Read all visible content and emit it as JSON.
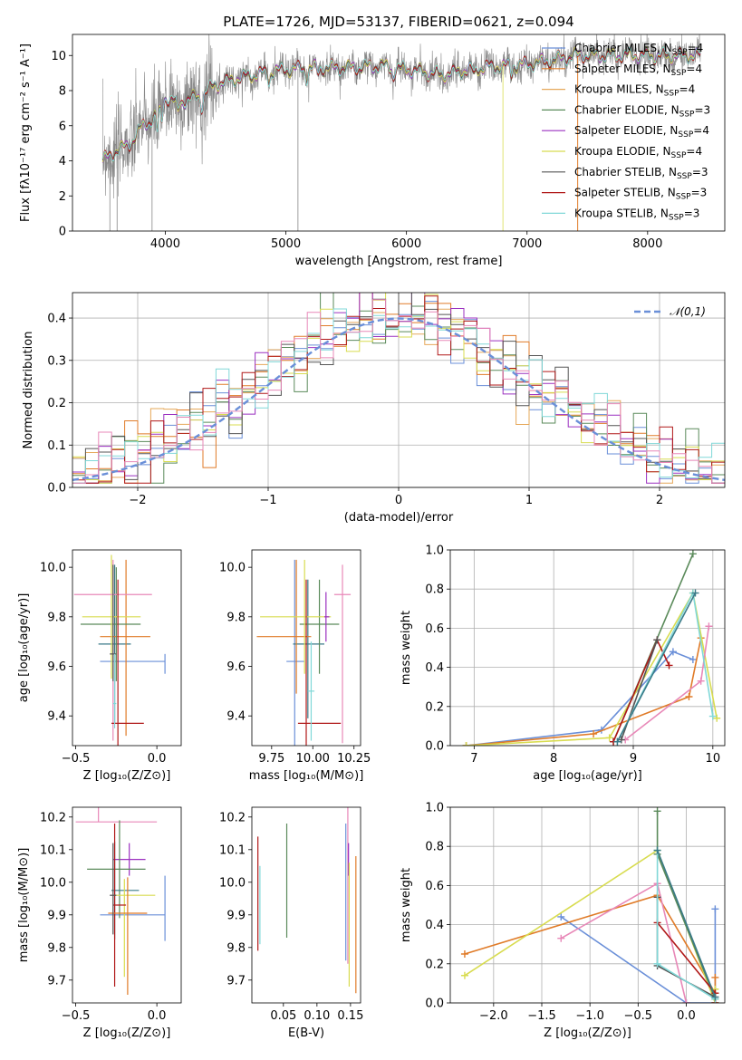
{
  "title": "PLATE=1726, MJD=53137, FIBERID=0621, z=0.094",
  "colors": {
    "c0": "#6a8fd8",
    "c1": "#e07b28",
    "c2": "#e6a85a",
    "c3": "#5a8a5a",
    "c4": "#9b30c0",
    "c5": "#d8dc50",
    "c6": "#555555",
    "c7": "#b01818",
    "c8": "#80d8d8",
    "c9": "#e888b8",
    "c10": "#3a7a88",
    "data": "#888888"
  },
  "chart_data": [
    {
      "type": "line",
      "panel": "spectrum",
      "xlabel": "wavelength [Angstrom, rest frame]",
      "ylabel": "Flux [fλ10⁻¹⁷ erg cm⁻² s⁻¹ A⁻¹]",
      "xlim": [
        3230,
        8640
      ],
      "ylim": [
        0,
        11.2
      ],
      "xticks": [
        4000,
        5000,
        6000,
        7000,
        8000
      ],
      "yticks": [
        0,
        2,
        4,
        6,
        8,
        10
      ],
      "series": [
        {
          "name": "Chabrier MILES, N_SSP=4",
          "color": "c0"
        },
        {
          "name": "Salpeter MILES, N_SSP=4",
          "color": "c1"
        },
        {
          "name": "Kroupa MILES, N_SSP=4",
          "color": "c2"
        },
        {
          "name": "Chabrier ELODIE, N_SSP=3",
          "color": "c3"
        },
        {
          "name": "Salpeter ELODIE, N_SSP=4",
          "color": "c4"
        },
        {
          "name": "Kroupa ELODIE, N_SSP=4",
          "color": "c5"
        },
        {
          "name": "Chabrier STELIB, N_SSP=3",
          "color": "c6"
        },
        {
          "name": "Salpeter STELIB, N_SSP=3",
          "color": "c7"
        },
        {
          "name": "Kroupa STELIB, N_SSP=3",
          "color": "c8"
        }
      ],
      "legend_label_parts": [
        [
          "Chabrier MILES, N",
          "SSP",
          "=4"
        ],
        [
          "Salpeter MILES, N",
          "SSP",
          "=4"
        ],
        [
          "Kroupa MILES, N",
          "SSP",
          "=4"
        ],
        [
          "Chabrier ELODIE, N",
          "SSP",
          "=3"
        ],
        [
          "Salpeter ELODIE, N",
          "SSP",
          "=4"
        ],
        [
          "Kroupa ELODIE, N",
          "SSP",
          "=4"
        ],
        [
          "Chabrier STELIB, N",
          "SSP",
          "=3"
        ],
        [
          "Salpeter STELIB, N",
          "SSP",
          "=3"
        ],
        [
          "Kroupa STELIB, N",
          "SSP",
          "=3"
        ]
      ],
      "continuum_points": [
        [
          3480,
          4.0
        ],
        [
          3600,
          4.6
        ],
        [
          3700,
          4.9
        ],
        [
          3800,
          5.9
        ],
        [
          3900,
          6.4
        ],
        [
          4000,
          7.6
        ],
        [
          4100,
          7.3
        ],
        [
          4200,
          7.5
        ],
        [
          4300,
          7.7
        ],
        [
          4400,
          8.3
        ],
        [
          4600,
          8.7
        ],
        [
          4800,
          9.0
        ],
        [
          5000,
          9.2
        ],
        [
          5200,
          9.3
        ],
        [
          5500,
          9.3
        ],
        [
          5800,
          9.4
        ],
        [
          6000,
          9.2
        ],
        [
          6300,
          8.9
        ],
        [
          6600,
          9.3
        ],
        [
          6800,
          9.4
        ],
        [
          7000,
          9.5
        ],
        [
          7200,
          9.7
        ],
        [
          7400,
          10.0
        ]
      ],
      "legend": "right"
    },
    {
      "type": "histogram",
      "panel": "residuals",
      "xlabel": "(data-model)/error",
      "ylabel": "Normed distribution",
      "xlim": [
        -2.5,
        2.5
      ],
      "ylim": [
        0,
        0.46
      ],
      "xticks": [
        -2,
        -1,
        0,
        1,
        2
      ],
      "yticks": [
        0.0,
        0.1,
        0.2,
        0.3,
        0.4
      ],
      "curve_label": "𝒩(0,1)",
      "legend": "top-right",
      "grid": true
    },
    {
      "type": "errorbar",
      "panel": "age-vs-Z",
      "xlabel": "Z [log₁₀(Z/Z⊙)]",
      "ylabel": "age  [log₁₀(age/yr)]",
      "xlim": [
        -0.52,
        0.15
      ],
      "ylim": [
        9.28,
        10.07
      ],
      "xticks": [
        -0.5,
        0.0
      ],
      "yticks": [
        9.4,
        9.6,
        9.8,
        10.0
      ],
      "points": [
        {
          "x": 0.05,
          "y": 9.62,
          "xerr": [
            0.4,
            0.0
          ],
          "yerr": [
            0.05,
            0.03
          ],
          "color": "c0"
        },
        {
          "x": -0.26,
          "y": 9.69,
          "xerr": [
            0.1,
            0.1
          ],
          "yerr": [
            0.32,
            0.32
          ],
          "color": "c10"
        },
        {
          "x": -0.19,
          "y": 9.72,
          "xerr": [
            0.16,
            0.15
          ],
          "yerr": [
            0.4,
            0.31
          ],
          "color": "c1"
        },
        {
          "x": -0.25,
          "y": 9.77,
          "xerr": [
            0.22,
            0.15
          ],
          "yerr": [
            0.23,
            0.23
          ],
          "color": "c3"
        },
        {
          "x": -0.28,
          "y": 9.8,
          "xerr": [
            0.18,
            0.18
          ],
          "yerr": [
            0.25,
            0.25
          ],
          "color": "c5"
        },
        {
          "x": -0.27,
          "y": 9.89,
          "xerr": [
            0.24,
            0.24
          ],
          "yerr": [
            0.59,
            0.14
          ],
          "color": "c9"
        },
        {
          "x": -0.27,
          "y": 9.65,
          "xerr": [
            0.02,
            0.02
          ],
          "yerr": [
            0.11,
            0.36
          ],
          "color": "c6"
        },
        {
          "x": -0.24,
          "y": 9.37,
          "xerr": [
            0.04,
            0.16
          ],
          "yerr": [
            0.12,
            0.58
          ],
          "color": "c7"
        },
        {
          "x": -0.26,
          "y": 9.45,
          "xerr": [
            0.01,
            0.01
          ],
          "yerr": [
            0.1,
            0.2
          ],
          "color": "c8"
        }
      ]
    },
    {
      "type": "errorbar",
      "panel": "age-vs-mass",
      "xlabel": "mass [log₁₀(M/M⊙)]",
      "xlim": [
        9.63,
        10.29
      ],
      "ylim": [
        9.28,
        10.07
      ],
      "xticks": [
        9.75,
        10.0,
        10.25
      ],
      "yticks": [
        9.4,
        9.6,
        9.8,
        10.0
      ],
      "points": [
        {
          "x": 9.89,
          "y": 9.62,
          "xerr": [
            0.05,
            0.06
          ],
          "yerr": [
            0.62,
            0.41
          ],
          "color": "c0"
        },
        {
          "x": 9.97,
          "y": 9.69,
          "xerr": [
            0.09,
            0.1
          ],
          "yerr": [
            0.3,
            0.26
          ],
          "color": "c10"
        },
        {
          "x": 9.9,
          "y": 9.72,
          "xerr": [
            0.24,
            0.09
          ],
          "yerr": [
            0.23,
            0.31
          ],
          "color": "c1"
        },
        {
          "x": 10.04,
          "y": 9.77,
          "xerr": [
            0.12,
            0.12
          ],
          "yerr": [
            0.2,
            0.18
          ],
          "color": "c3"
        },
        {
          "x": 9.95,
          "y": 9.8,
          "xerr": [
            0.27,
            0.16
          ],
          "yerr": [
            0.23,
            0.23
          ],
          "color": "c5"
        },
        {
          "x": 10.18,
          "y": 9.89,
          "xerr": [
            0.05,
            0.05
          ],
          "yerr": [
            0.6,
            0.12
          ],
          "color": "c9"
        },
        {
          "x": 10.08,
          "y": 9.8,
          "xerr": [
            0.01,
            0.02
          ],
          "yerr": [
            0.1,
            0.1
          ],
          "color": "c4"
        },
        {
          "x": 9.96,
          "y": 9.37,
          "xerr": [
            0.05,
            0.21
          ],
          "yerr": [
            0.12,
            0.58
          ],
          "color": "c7"
        },
        {
          "x": 9.99,
          "y": 9.5,
          "xerr": [
            0.02,
            0.02
          ],
          "yerr": [
            0.2,
            0.2
          ],
          "color": "c8"
        }
      ]
    },
    {
      "type": "line",
      "panel": "mass-weight-vs-age",
      "xlabel": "age  [log₁₀(age/yr)]",
      "ylabel": "mass weight",
      "xlim": [
        6.7,
        10.15
      ],
      "ylim": [
        0,
        1.0
      ],
      "xticks": [
        7,
        8,
        9,
        10
      ],
      "yticks": [
        0.0,
        0.2,
        0.4,
        0.6,
        0.8,
        1.0
      ],
      "grid": true,
      "series": [
        {
          "color": "c0",
          "points": [
            [
              6.9,
              0.0
            ],
            [
              8.6,
              0.08
            ],
            [
              9.5,
              0.48
            ],
            [
              9.75,
              0.44
            ]
          ]
        },
        {
          "color": "c1",
          "points": [
            [
              6.9,
              0.0
            ],
            [
              8.5,
              0.06
            ],
            [
              9.7,
              0.25
            ],
            [
              9.85,
              0.55
            ]
          ]
        },
        {
          "color": "c5",
          "points": [
            [
              6.9,
              0.0
            ],
            [
              8.7,
              0.04
            ],
            [
              9.75,
              0.78
            ],
            [
              10.05,
              0.14
            ]
          ]
        },
        {
          "color": "c3",
          "points": [
            [
              8.75,
              0.02
            ],
            [
              9.75,
              0.98
            ]
          ]
        },
        {
          "color": "c9",
          "points": [
            [
              8.9,
              0.03
            ],
            [
              9.85,
              0.33
            ],
            [
              9.95,
              0.61
            ]
          ]
        },
        {
          "color": "c7",
          "points": [
            [
              8.75,
              0.02
            ],
            [
              9.3,
              0.54
            ],
            [
              9.45,
              0.41
            ]
          ]
        },
        {
          "color": "c6",
          "points": [
            [
              8.85,
              0.03
            ],
            [
              9.3,
              0.54
            ]
          ]
        },
        {
          "color": "c8",
          "points": [
            [
              8.8,
              0.02
            ],
            [
              9.75,
              0.78
            ],
            [
              10.0,
              0.15
            ]
          ]
        },
        {
          "color": "c10",
          "points": [
            [
              8.8,
              0.02
            ],
            [
              9.78,
              0.78
            ]
          ]
        }
      ]
    },
    {
      "type": "errorbar",
      "panel": "mass-vs-Z",
      "xlabel": "Z [log₁₀(Z/Z⊙)]",
      "ylabel": "mass [log₁₀(M/M⊙)]",
      "xlim": [
        -0.52,
        0.15
      ],
      "ylim": [
        9.63,
        10.23
      ],
      "xticks": [
        -0.5,
        0.0
      ],
      "yticks": [
        9.7,
        9.8,
        9.9,
        10.0,
        10.1,
        10.2
      ],
      "points": [
        {
          "x": -0.36,
          "y": 10.185,
          "xerr": [
            0.14,
            0.36
          ],
          "yerr": [
            0.0,
            0.06
          ],
          "color": "c9"
        },
        {
          "x": 0.05,
          "y": 9.9,
          "xerr": [
            0.4,
            0.0
          ],
          "yerr": [
            0.08,
            0.12
          ],
          "color": "c0"
        },
        {
          "x": -0.17,
          "y": 10.07,
          "xerr": [
            0.1,
            0.1
          ],
          "yerr": [
            0.05,
            0.05
          ],
          "color": "c4"
        },
        {
          "x": -0.23,
          "y": 10.04,
          "xerr": [
            0.2,
            0.16
          ],
          "yerr": [
            0.15,
            0.15
          ],
          "color": "c3"
        },
        {
          "x": -0.26,
          "y": 9.975,
          "xerr": [
            0.02,
            0.15
          ],
          "yerr": [
            0.15,
            0.15
          ],
          "color": "c10"
        },
        {
          "x": -0.2,
          "y": 9.96,
          "xerr": [
            0.07,
            0.19
          ],
          "yerr": [
            0.25,
            0.05
          ],
          "color": "c5"
        },
        {
          "x": -0.26,
          "y": 9.93,
          "xerr": [
            0.01,
            0.07
          ],
          "yerr": [
            0.25,
            0.25
          ],
          "color": "c7"
        },
        {
          "x": -0.18,
          "y": 9.905,
          "xerr": [
            0.12,
            0.12
          ],
          "yerr": [
            0.25,
            0.11
          ],
          "color": "c1"
        },
        {
          "x": -0.27,
          "y": 9.96,
          "xerr": [
            0.02,
            0.02
          ],
          "yerr": [
            0.12,
            0.16
          ],
          "color": "c6"
        }
      ]
    },
    {
      "type": "errorbar",
      "panel": "mass-vs-EBV",
      "xlabel": "E(B-V)",
      "xlim": [
        0.003,
        0.165
      ],
      "ylim": [
        9.63,
        10.23
      ],
      "xticks": [
        0.05,
        0.1,
        0.15
      ],
      "yticks": [
        9.7,
        9.8,
        9.9,
        10.0,
        10.1,
        10.2
      ],
      "points": [
        {
          "x": 0.012,
          "y": 9.97,
          "yerr": [
            0.18,
            0.17
          ],
          "color": "c7"
        },
        {
          "x": 0.055,
          "y": 10.0,
          "yerr": [
            0.17,
            0.18
          ],
          "color": "c3"
        },
        {
          "x": 0.143,
          "y": 9.97,
          "yerr": [
            0.21,
            0.21
          ],
          "color": "c0"
        },
        {
          "x": 0.146,
          "y": 10.07,
          "yerr": [
            0.32,
            0.18
          ],
          "color": "c9"
        },
        {
          "x": 0.147,
          "y": 10.07,
          "yerr": [
            0.05,
            0.05
          ],
          "color": "c4"
        },
        {
          "x": 0.148,
          "y": 9.9,
          "yerr": [
            0.22,
            0.16
          ],
          "color": "c5"
        },
        {
          "x": 0.158,
          "y": 9.87,
          "yerr": [
            0.21,
            0.21
          ],
          "color": "c1"
        },
        {
          "x": 0.015,
          "y": 9.95,
          "yerr": [
            0.14,
            0.1
          ],
          "color": "c8"
        }
      ]
    },
    {
      "type": "line",
      "panel": "mass-weight-vs-Z",
      "xlabel": "Z [log₁₀(Z/Z⊙)]",
      "ylabel": "mass weight",
      "xlim": [
        -2.45,
        0.4
      ],
      "ylim": [
        0,
        1.0
      ],
      "xticks": [
        -2.0,
        -1.5,
        -1.0,
        -0.5,
        0.0
      ],
      "yticks": [
        0.0,
        0.2,
        0.4,
        0.6,
        0.8,
        1.0
      ],
      "grid": true,
      "series": [
        {
          "color": "c0",
          "points": [
            [
              -1.3,
              0.44
            ],
            [
              0.0,
              0.0
            ],
            [
              0.3,
              0.0
            ],
            [
              0.3,
              0.48
            ]
          ]
        },
        {
          "color": "c1",
          "points": [
            [
              -2.3,
              0.25
            ],
            [
              -0.3,
              0.55
            ],
            [
              0.3,
              0.05
            ],
            [
              0.3,
              0.13
            ]
          ]
        },
        {
          "color": "c5",
          "points": [
            [
              -2.3,
              0.14
            ],
            [
              -0.3,
              0.78
            ],
            [
              0.3,
              0.0
            ],
            [
              0.3,
              0.07
            ]
          ]
        },
        {
          "color": "c3",
          "points": [
            [
              -0.3,
              0.98
            ],
            [
              -0.3,
              0.76
            ],
            [
              0.3,
              0.02
            ]
          ]
        },
        {
          "color": "c9",
          "points": [
            [
              -1.3,
              0.33
            ],
            [
              -0.3,
              0.61
            ],
            [
              0.0,
              0.0
            ]
          ]
        },
        {
          "color": "c7",
          "points": [
            [
              -0.3,
              0.41
            ],
            [
              0.3,
              0.05
            ],
            [
              0.3,
              0.0
            ]
          ]
        },
        {
          "color": "c6",
          "points": [
            [
              -0.3,
              0.54
            ],
            [
              -0.3,
              0.19
            ],
            [
              0.3,
              0.03
            ]
          ]
        },
        {
          "color": "c8",
          "points": [
            [
              -0.3,
              0.78
            ],
            [
              -0.3,
              0.2
            ],
            [
              0.3,
              0.02
            ]
          ]
        },
        {
          "color": "c10",
          "points": [
            [
              -0.3,
              0.78
            ],
            [
              0.3,
              0.03
            ]
          ]
        }
      ]
    }
  ]
}
